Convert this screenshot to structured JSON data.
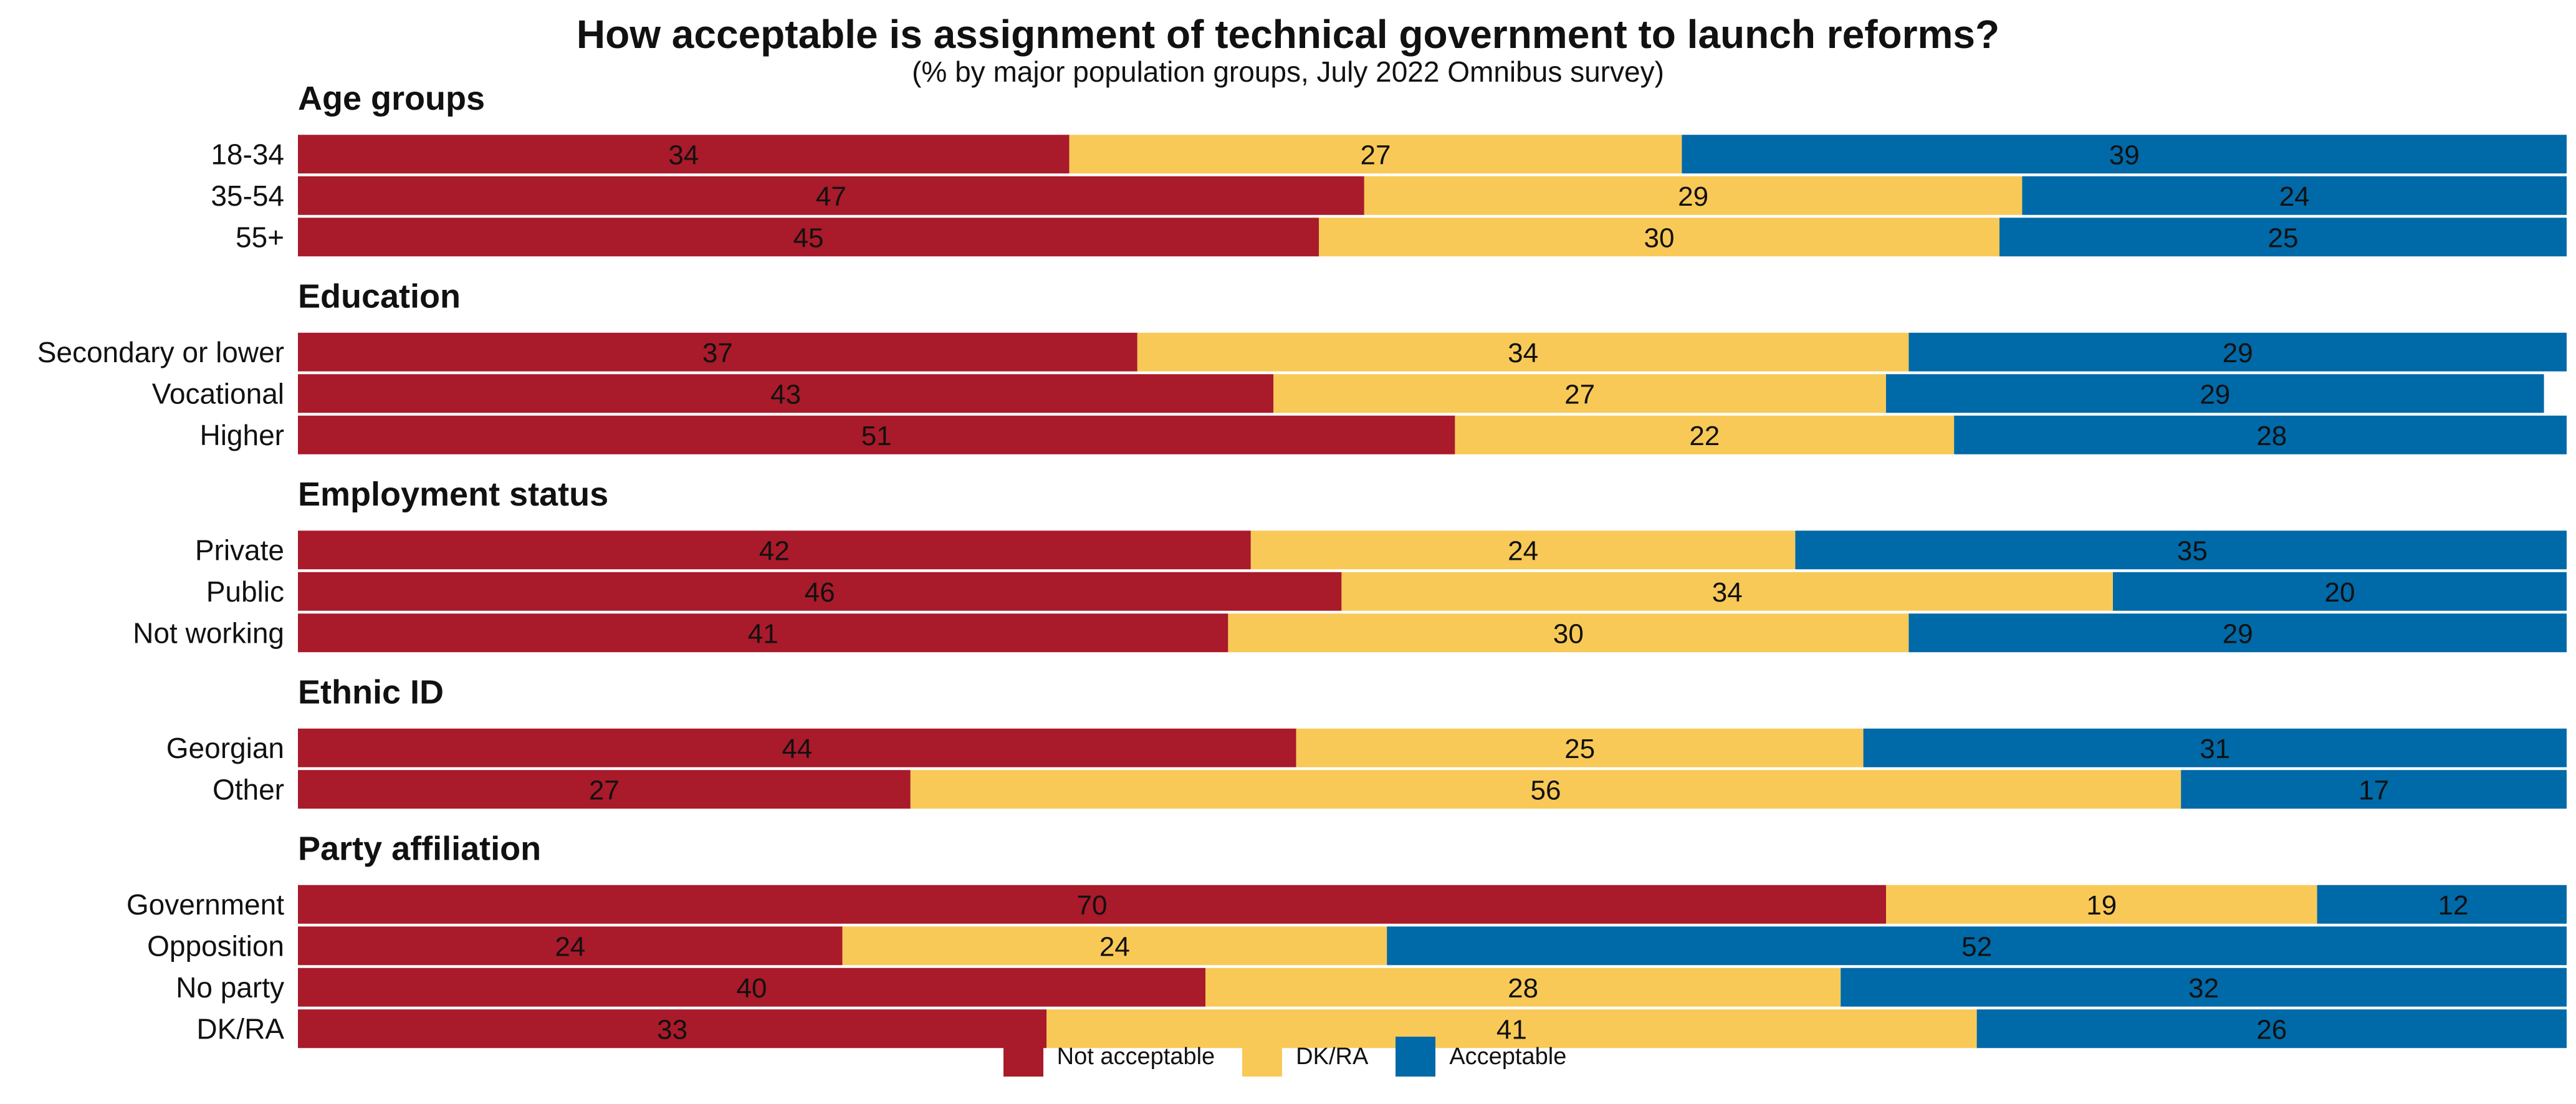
{
  "chart_data": {
    "type": "bar",
    "stacked": true,
    "orientation": "horizontal",
    "title": "How acceptable is assignment of technical government to launch reforms?",
    "subtitle": "(% by major population groups, July 2022 Omnibus survey)",
    "xlim": [
      0,
      100
    ],
    "grid": false,
    "legend_position": "bottom",
    "series": [
      {
        "name": "Not acceptable",
        "color": "#A91A2A"
      },
      {
        "name": "DK/RA",
        "color": "#F8C957"
      },
      {
        "name": "Acceptable",
        "color": "#0069A8"
      }
    ],
    "groups": [
      {
        "name": "Age groups",
        "rows": [
          {
            "label": "18-34",
            "values": [
              34,
              27,
              39
            ]
          },
          {
            "label": "35-54",
            "values": [
              47,
              29,
              24
            ]
          },
          {
            "label": "55+",
            "values": [
              45,
              30,
              25
            ]
          }
        ]
      },
      {
        "name": "Education",
        "rows": [
          {
            "label": "Secondary or lower",
            "values": [
              37,
              34,
              29
            ]
          },
          {
            "label": "Vocational",
            "values": [
              43,
              27,
              29
            ]
          },
          {
            "label": "Higher",
            "values": [
              51,
              22,
              28
            ]
          }
        ]
      },
      {
        "name": "Employment status",
        "rows": [
          {
            "label": "Private",
            "values": [
              42,
              24,
              35
            ]
          },
          {
            "label": "Public",
            "values": [
              46,
              34,
              20
            ]
          },
          {
            "label": "Not working",
            "values": [
              41,
              30,
              29
            ]
          }
        ]
      },
      {
        "name": "Ethnic ID",
        "rows": [
          {
            "label": "Georgian",
            "values": [
              44,
              25,
              31
            ]
          },
          {
            "label": "Other",
            "values": [
              27,
              56,
              17
            ]
          }
        ]
      },
      {
        "name": "Party affiliation",
        "rows": [
          {
            "label": "Government",
            "values": [
              70,
              19,
              12
            ]
          },
          {
            "label": "Opposition",
            "values": [
              24,
              24,
              52
            ]
          },
          {
            "label": "No party",
            "values": [
              40,
              28,
              32
            ]
          },
          {
            "label": "DK/RA",
            "values": [
              33,
              41,
              26
            ]
          }
        ]
      }
    ]
  }
}
